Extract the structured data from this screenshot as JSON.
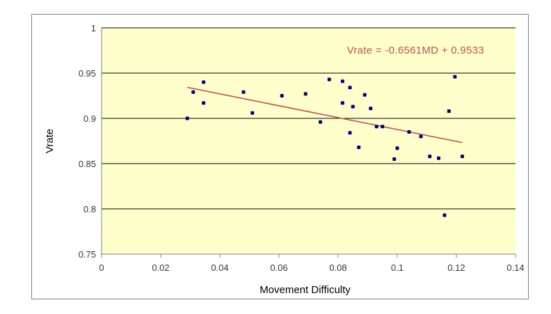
{
  "chart_data": {
    "type": "scatter",
    "title": "",
    "xlabel": "Movement Difficulty",
    "ylabel": "Vrate",
    "xlim": [
      0,
      0.14
    ],
    "ylim": [
      0.75,
      1
    ],
    "x_ticks": [
      "0",
      "0.02",
      "0.04",
      "0.06",
      "0.08",
      "0.1",
      "0.12",
      "0.14"
    ],
    "y_ticks": [
      "0.75",
      "0.8",
      "0.85",
      "0.9",
      "0.95",
      "1"
    ],
    "grid": "horizontal",
    "plot_background": "#ffffcc",
    "point_color": "#000080",
    "trendline_color": "#c0504d",
    "trendline": {
      "label": "Vrate = -0.6561MD + 0.9533",
      "slope": -0.6561,
      "intercept": 0.9533,
      "x_range": [
        0.029,
        0.122
      ]
    },
    "series": [
      {
        "points": [
          [
            0.029,
            0.9
          ],
          [
            0.031,
            0.929
          ],
          [
            0.0345,
            0.94
          ],
          [
            0.0345,
            0.917
          ],
          [
            0.048,
            0.929
          ],
          [
            0.051,
            0.906
          ],
          [
            0.061,
            0.925
          ],
          [
            0.069,
            0.927
          ],
          [
            0.074,
            0.896
          ],
          [
            0.077,
            0.943
          ],
          [
            0.0815,
            0.941
          ],
          [
            0.0815,
            0.917
          ],
          [
            0.084,
            0.934
          ],
          [
            0.084,
            0.884
          ],
          [
            0.085,
            0.913
          ],
          [
            0.087,
            0.868
          ],
          [
            0.089,
            0.926
          ],
          [
            0.091,
            0.911
          ],
          [
            0.093,
            0.891
          ],
          [
            0.095,
            0.891
          ],
          [
            0.099,
            0.855
          ],
          [
            0.1,
            0.867
          ],
          [
            0.104,
            0.885
          ],
          [
            0.108,
            0.88
          ],
          [
            0.111,
            0.858
          ],
          [
            0.114,
            0.856
          ],
          [
            0.116,
            0.793
          ],
          [
            0.1175,
            0.908
          ],
          [
            0.1195,
            0.946
          ],
          [
            0.122,
            0.858
          ]
        ]
      }
    ]
  }
}
